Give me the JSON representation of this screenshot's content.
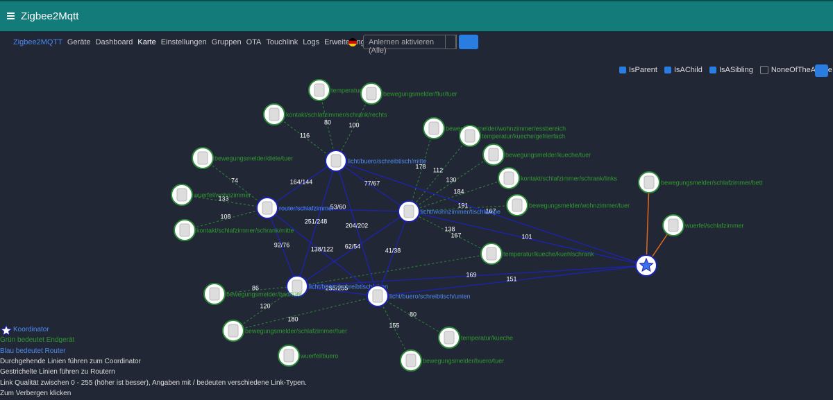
{
  "header": {
    "title": "Zigbee2Mqtt"
  },
  "nav": {
    "brand": "Zigbee2MQTT",
    "items": [
      "Geräte",
      "Dashboard",
      "Karte",
      "Einstellungen",
      "Gruppen",
      "OTA",
      "Touchlink",
      "Logs",
      "Erweiterungen"
    ],
    "permit_join": "Anlernen aktivieren (Alle)"
  },
  "filters": [
    "IsParent",
    "IsAChild",
    "IsASibling",
    "NoneOfTheAbove"
  ],
  "nodes": [
    {
      "label": "temperatur"
    },
    {
      "label": "bewegungsmelder/flur/tuer"
    },
    {
      "label": "kontakt/schlafzimmer/schrank/rechts"
    },
    {
      "label": "bewegungsmelder/wohnzimmer/essbereich"
    },
    {
      "label": "temperatur/kueche/gefrierfach"
    },
    {
      "label": "bewegungsmelder/diele/tuer"
    },
    {
      "label": "licht/buero/schreibtisch/mitte"
    },
    {
      "label": "bewegungsmelder/kueche/tuer"
    },
    {
      "label": "kontakt/schlafzimmer/schrank/links"
    },
    {
      "label": "bewegungsmelder/schlafzimmer/bett"
    },
    {
      "label": "wuerfel/wohnzimmer"
    },
    {
      "label": "router/schlafzimmer"
    },
    {
      "label": "licht/wohnzimmer/tischlampe"
    },
    {
      "label": "bewegungsmelder/wohnzimmer/tuer"
    },
    {
      "label": "wuerfel/schlafzimmer"
    },
    {
      "label": "kontakt/schlafzimmer/schrank/mitte"
    },
    {
      "label": "temperatur/kueche/kuehlschrank"
    },
    {
      "label": "licht/buero/schreibtisch/oben"
    },
    {
      "label": "licht/buero/schreibtisch/unten"
    },
    {
      "label": "bewegungsmelder/bad/tuer"
    },
    {
      "label": "bewegungsmelder/schlafzimmer/tuer"
    },
    {
      "label": "temperatur/kueche"
    },
    {
      "label": "wuerfel/buero"
    },
    {
      "label": "bewegungsmelder/buero/tuer"
    }
  ],
  "links": [
    "80",
    "100",
    "116",
    "178",
    "112",
    "130",
    "184",
    "191",
    "138",
    "167",
    "74",
    "133",
    "108",
    "164/144",
    "77/67",
    "53/60",
    "251/248",
    "204/202",
    "92/76",
    "138/122",
    "62/54",
    "41/38",
    "255/255",
    "101",
    "169",
    "151",
    "167",
    "86",
    "120",
    "180",
    "80",
    "155"
  ],
  "legend": [
    "Koordinator",
    "Grün bedeutet Endgerät",
    "Blau bedeutet Router",
    "Durchgehende Linien führen zum Coordinator",
    "Gestrichelte Linien führen zu Routern",
    "Link Qualität zwischen 0 - 255 (höher ist besser), Angaben mit / bedeuten verschiedene Link-Typen.",
    "Zum Verbergen klicken"
  ]
}
